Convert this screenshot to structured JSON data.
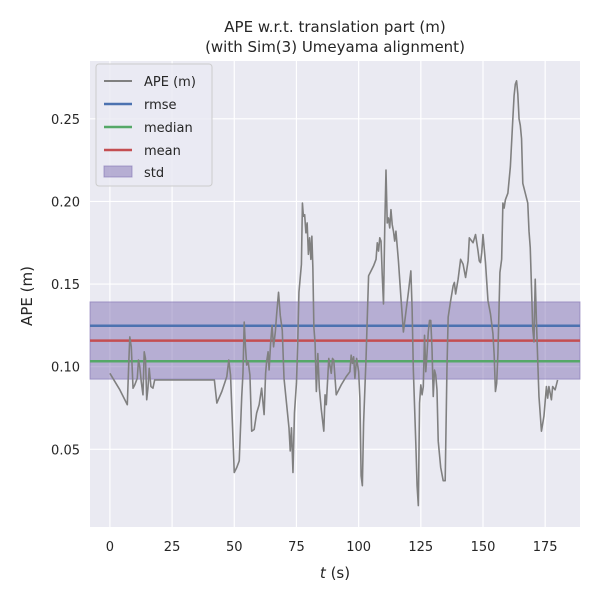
{
  "chart_data": {
    "type": "line",
    "title_line1": "APE w.r.t. translation part (m)",
    "title_line2": "(with Sim(3) Umeyama alignment)",
    "xlabel_var": "t",
    "xlabel_unit": " (s)",
    "ylabel": "APE (m)",
    "xlim": [
      -8,
      189
    ],
    "ylim": [
      0.003,
      0.285
    ],
    "xticks": [
      0,
      25,
      50,
      75,
      100,
      125,
      150,
      175
    ],
    "yticks": [
      0.05,
      0.1,
      0.15,
      0.2,
      0.25
    ],
    "ytick_labels": [
      "0.05",
      "0.10",
      "0.15",
      "0.20",
      "0.25"
    ],
    "grid": true,
    "legend_position": "top-left",
    "colors": {
      "background": "#eaeaf2",
      "grid": "#ffffff",
      "ape": "#808080",
      "rmse": "#4c72b0",
      "median": "#55a868",
      "mean": "#c44e52",
      "std": "#8172b3"
    },
    "stats": {
      "rmse": 0.1248,
      "median": 0.1033,
      "mean": 0.1158,
      "std_low": 0.0925,
      "std_high": 0.1392
    },
    "legend": [
      "APE (m)",
      "rmse",
      "median",
      "mean",
      "std"
    ],
    "series": [
      {
        "name": "APE (m)",
        "points": [
          [
            0,
            0.096
          ],
          [
            2,
            0.091
          ],
          [
            4,
            0.086
          ],
          [
            6,
            0.08
          ],
          [
            7,
            0.077
          ],
          [
            7.6,
            0.103
          ],
          [
            8,
            0.118
          ],
          [
            8.6,
            0.112
          ],
          [
            9.3,
            0.087
          ],
          [
            10,
            0.089
          ],
          [
            11,
            0.093
          ],
          [
            11.5,
            0.104
          ],
          [
            12,
            0.1
          ],
          [
            12.6,
            0.091
          ],
          [
            13.3,
            0.083
          ],
          [
            13.8,
            0.109
          ],
          [
            14.3,
            0.105
          ],
          [
            14.8,
            0.08
          ],
          [
            15.3,
            0.087
          ],
          [
            15.8,
            0.099
          ],
          [
            16.5,
            0.088
          ],
          [
            17.3,
            0.087
          ],
          [
            18,
            0.092
          ],
          [
            20,
            0.092
          ],
          [
            25,
            0.092
          ],
          [
            30,
            0.092
          ],
          [
            35,
            0.092
          ],
          [
            40,
            0.092
          ],
          [
            42,
            0.092
          ],
          [
            43,
            0.078
          ],
          [
            45,
            0.085
          ],
          [
            47,
            0.094
          ],
          [
            47.8,
            0.104
          ],
          [
            48.5,
            0.095
          ],
          [
            49.3,
            0.064
          ],
          [
            50,
            0.036
          ],
          [
            51,
            0.039
          ],
          [
            52,
            0.043
          ],
          [
            53,
            0.082
          ],
          [
            53.5,
            0.096
          ],
          [
            54,
            0.127
          ],
          [
            54.5,
            0.112
          ],
          [
            55,
            0.101
          ],
          [
            55.6,
            0.103
          ],
          [
            56.3,
            0.095
          ],
          [
            57,
            0.061
          ],
          [
            58,
            0.062
          ],
          [
            59,
            0.072
          ],
          [
            60,
            0.077
          ],
          [
            61,
            0.087
          ],
          [
            62,
            0.071
          ],
          [
            62.6,
            0.096
          ],
          [
            63,
            0.103
          ],
          [
            63.6,
            0.109
          ],
          [
            64,
            0.098
          ],
          [
            64.6,
            0.114
          ],
          [
            65.2,
            0.125
          ],
          [
            65.8,
            0.112
          ],
          [
            66.5,
            0.121
          ],
          [
            67,
            0.131
          ],
          [
            67.8,
            0.145
          ],
          [
            68.5,
            0.131
          ],
          [
            69.3,
            0.122
          ],
          [
            70,
            0.093
          ],
          [
            71,
            0.078
          ],
          [
            72,
            0.063
          ],
          [
            72.5,
            0.049
          ],
          [
            73,
            0.063
          ],
          [
            73.6,
            0.036
          ],
          [
            74.2,
            0.072
          ],
          [
            75,
            0.09
          ],
          [
            75.5,
            0.113
          ],
          [
            76,
            0.145
          ],
          [
            77,
            0.162
          ],
          [
            77.4,
            0.199
          ],
          [
            77.8,
            0.191
          ],
          [
            78.3,
            0.192
          ],
          [
            78.8,
            0.181
          ],
          [
            79.3,
            0.187
          ],
          [
            79.8,
            0.168
          ],
          [
            80.3,
            0.178
          ],
          [
            80.8,
            0.165
          ],
          [
            81.2,
            0.179
          ],
          [
            81.6,
            0.16
          ],
          [
            82,
            0.124
          ],
          [
            82.5,
            0.114
          ],
          [
            83,
            0.085
          ],
          [
            83.6,
            0.108
          ],
          [
            84.2,
            0.087
          ],
          [
            85,
            0.074
          ],
          [
            86,
            0.061
          ],
          [
            86.5,
            0.083
          ],
          [
            87,
            0.077
          ],
          [
            88,
            0.105
          ],
          [
            89,
            0.096
          ],
          [
            89.5,
            0.105
          ],
          [
            90,
            0.104
          ],
          [
            91,
            0.083
          ],
          [
            93,
            0.089
          ],
          [
            95,
            0.094
          ],
          [
            96.5,
            0.097
          ],
          [
            97,
            0.107
          ],
          [
            97.5,
            0.102
          ],
          [
            98,
            0.106
          ],
          [
            98.5,
            0.093
          ],
          [
            99.2,
            0.105
          ],
          [
            100,
            0.097
          ],
          [
            100.5,
            0.081
          ],
          [
            101,
            0.034
          ],
          [
            101.5,
            0.028
          ],
          [
            102,
            0.066
          ],
          [
            103,
            0.106
          ],
          [
            104,
            0.155
          ],
          [
            105,
            0.158
          ],
          [
            106,
            0.161
          ],
          [
            107,
            0.165
          ],
          [
            107.5,
            0.175
          ],
          [
            108,
            0.17
          ],
          [
            108.5,
            0.178
          ],
          [
            109,
            0.176
          ],
          [
            109.5,
            0.155
          ],
          [
            110,
            0.138
          ],
          [
            110.5,
            0.184
          ],
          [
            111,
            0.219
          ],
          [
            111.5,
            0.187
          ],
          [
            112,
            0.19
          ],
          [
            112.5,
            0.184
          ],
          [
            113,
            0.195
          ],
          [
            113.5,
            0.186
          ],
          [
            114,
            0.182
          ],
          [
            114.5,
            0.176
          ],
          [
            115,
            0.182
          ],
          [
            116,
            0.164
          ],
          [
            117,
            0.142
          ],
          [
            118,
            0.121
          ],
          [
            119,
            0.133
          ],
          [
            120,
            0.145
          ],
          [
            121,
            0.158
          ],
          [
            121.5,
            0.135
          ],
          [
            122,
            0.098
          ],
          [
            123,
            0.053
          ],
          [
            123.5,
            0.028
          ],
          [
            124,
            0.016
          ],
          [
            124.5,
            0.078
          ],
          [
            125,
            0.089
          ],
          [
            125.5,
            0.083
          ],
          [
            126,
            0.088
          ],
          [
            126.5,
            0.119
          ],
          [
            127,
            0.097
          ],
          [
            127.5,
            0.108
          ],
          [
            128,
            0.121
          ],
          [
            128.5,
            0.128
          ],
          [
            129,
            0.128
          ],
          [
            129.5,
            0.111
          ],
          [
            130,
            0.082
          ],
          [
            130.5,
            0.098
          ],
          [
            131,
            0.095
          ],
          [
            131.5,
            0.086
          ],
          [
            132,
            0.055
          ],
          [
            133,
            0.039
          ],
          [
            134,
            0.031
          ],
          [
            134.8,
            0.031
          ],
          [
            135.5,
            0.098
          ],
          [
            136,
            0.13
          ],
          [
            137,
            0.14
          ],
          [
            138,
            0.149
          ],
          [
            138.5,
            0.151
          ],
          [
            139,
            0.144
          ],
          [
            140,
            0.153
          ],
          [
            141,
            0.165
          ],
          [
            142,
            0.162
          ],
          [
            142.5,
            0.158
          ],
          [
            143,
            0.154
          ],
          [
            144,
            0.164
          ],
          [
            144.5,
            0.178
          ],
          [
            145,
            0.177
          ],
          [
            146,
            0.175
          ],
          [
            147,
            0.18
          ],
          [
            148,
            0.17
          ],
          [
            148.5,
            0.164
          ],
          [
            149,
            0.163
          ],
          [
            149.5,
            0.169
          ],
          [
            150,
            0.18
          ],
          [
            151,
            0.163
          ],
          [
            152,
            0.14
          ],
          [
            153,
            0.132
          ],
          [
            154,
            0.12
          ],
          [
            154.5,
            0.107
          ],
          [
            155,
            0.085
          ],
          [
            155.5,
            0.09
          ],
          [
            156,
            0.108
          ],
          [
            156.8,
            0.157
          ],
          [
            157.5,
            0.165
          ],
          [
            158,
            0.199
          ],
          [
            158.5,
            0.196
          ],
          [
            159,
            0.201
          ],
          [
            160,
            0.205
          ],
          [
            161,
            0.221
          ],
          [
            162,
            0.25
          ],
          [
            162.5,
            0.264
          ],
          [
            163,
            0.271
          ],
          [
            163.5,
            0.273
          ],
          [
            164,
            0.265
          ],
          [
            164.5,
            0.25
          ],
          [
            165,
            0.246
          ],
          [
            165.5,
            0.238
          ],
          [
            166,
            0.211
          ],
          [
            167,
            0.205
          ],
          [
            168,
            0.199
          ],
          [
            168.5,
            0.182
          ],
          [
            169,
            0.172
          ],
          [
            169.5,
            0.148
          ],
          [
            170,
            0.123
          ],
          [
            170.5,
            0.115
          ],
          [
            171,
            0.153
          ],
          [
            171.5,
            0.127
          ],
          [
            172,
            0.104
          ],
          [
            172.5,
            0.082
          ],
          [
            173.5,
            0.061
          ],
          [
            174.5,
            0.07
          ],
          [
            175.5,
            0.088
          ],
          [
            176,
            0.081
          ],
          [
            176.5,
            0.088
          ],
          [
            177,
            0.084
          ],
          [
            177.5,
            0.08
          ],
          [
            178,
            0.088
          ],
          [
            179,
            0.086
          ],
          [
            180,
            0.092
          ]
        ]
      }
    ]
  }
}
